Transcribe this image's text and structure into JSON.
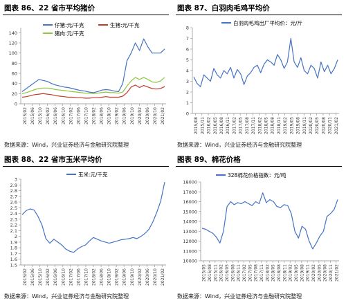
{
  "panels": [
    {
      "title": "图表 86、22 省市平均猪价",
      "source": "数据来源：Wind，兴业证券经济与金融研究院整理"
    },
    {
      "title": "图表 87、白羽肉毛鸡平均价",
      "source": "数据来源：Wind，兴业证券经济与金融研究院整理"
    },
    {
      "title": "图表 88、22 省市玉米平均价",
      "source": "数据来源：Wind，兴业证券经济与金融研究院整理"
    },
    {
      "title": "图表 89、棉花价格",
      "source": "数据来源：Wind，兴业证券经济与金融研究院整理"
    }
  ],
  "chart_data": [
    {
      "type": "line",
      "ylim": [
        0,
        150
      ],
      "yticks": [
        "0",
        "20",
        "40",
        "60",
        "80",
        "100",
        "120",
        "140"
      ],
      "xticks": [
        "2015/02",
        "2015/06",
        "2015/10",
        "2016/02",
        "2016/06",
        "2016/10",
        "2017/02",
        "2017/06",
        "2017/10",
        "2018/02",
        "2018/06",
        "2018/10",
        "2019/02",
        "2019/06",
        "2019/10",
        "2020/02",
        "2020/06",
        "2020/10",
        "2021/02"
      ],
      "legend": "top-center",
      "series": [
        {
          "name": "仔猪:元/千克",
          "color": "#4472C4",
          "values": [
            24,
            30,
            36,
            42,
            48,
            46,
            44,
            40,
            37,
            35,
            33,
            32,
            30,
            28,
            26,
            25,
            23,
            22,
            24,
            27,
            28,
            27,
            25,
            24,
            40,
            85,
            100,
            120,
            105,
            128,
            112,
            100,
            100,
            100,
            108
          ]
        },
        {
          "name": "生猪:元/千克",
          "color": "#C0392B",
          "values": [
            13,
            14,
            16,
            18,
            19,
            20,
            19,
            18,
            16,
            15,
            14,
            13,
            13,
            12,
            12,
            11,
            11,
            12,
            12,
            13,
            14,
            13,
            13,
            13,
            15,
            22,
            33,
            37,
            32,
            36,
            33,
            30,
            29,
            30,
            34
          ]
        },
        {
          "name": "猪肉:元/千克",
          "color": "#8DC63F",
          "values": [
            20,
            22,
            25,
            28,
            30,
            31,
            31,
            30,
            28,
            27,
            26,
            25,
            24,
            23,
            22,
            21,
            21,
            20,
            21,
            22,
            23,
            22,
            22,
            21,
            23,
            35,
            45,
            52,
            48,
            52,
            48,
            43,
            42,
            45,
            52
          ]
        }
      ]
    },
    {
      "type": "line",
      "ylim": [
        0,
        8
      ],
      "yticks": [
        "0",
        "1",
        "2",
        "3",
        "4",
        "5",
        "6",
        "7",
        "8"
      ],
      "xticks": [
        "2015/08",
        "2015/11",
        "2016/02",
        "2016/05",
        "2016/08",
        "2016/11",
        "2017/02",
        "2017/05",
        "2017/08",
        "2017/11",
        "2018/02",
        "2018/05",
        "2018/08",
        "2018/11",
        "2019/02",
        "2019/05",
        "2019/08",
        "2019/11",
        "2020/02",
        "2020/05",
        "2020/08",
        "2020/11",
        "2021/02"
      ],
      "legend": "top-center",
      "series": [
        {
          "name": "白羽肉毛鸡出厂平均价：元/斤",
          "color": "#4472C4",
          "values": [
            3.4,
            2.8,
            2.5,
            3.6,
            3.3,
            3.0,
            4.2,
            3.6,
            3.3,
            4.0,
            3.7,
            4.3,
            3.3,
            4.1,
            3.7,
            2.7,
            3.5,
            3.8,
            4.3,
            4.5,
            3.8,
            4.6,
            5.0,
            4.8,
            4.5,
            5.5,
            5.0,
            4.2,
            4.8,
            7.0,
            4.8,
            4.3,
            5.2,
            4.0,
            3.7,
            4.5,
            4.2,
            3.3,
            4.8,
            3.9,
            4.5,
            3.7,
            4.2,
            5.0
          ]
        }
      ]
    },
    {
      "type": "line",
      "ylim": [
        1.5,
        3.0
      ],
      "yticks": [
        "1.5",
        "1.6",
        "1.7",
        "1.8",
        "1.9",
        "2",
        "2.1",
        "2.2",
        "2.3",
        "2.4",
        "2.5",
        "2.6",
        "2.7",
        "2.8",
        "2.9",
        "3"
      ],
      "xticks": [
        "2015/02",
        "2015/06",
        "2015/10",
        "2016/02",
        "2016/06",
        "2016/10",
        "2017/02",
        "2017/06",
        "2017/10",
        "2018/02",
        "2018/06",
        "2018/10",
        "2019/02",
        "2019/06",
        "2019/10",
        "2020/02",
        "2020/06",
        "2020/10",
        "2021/02"
      ],
      "legend": "top-center",
      "series": [
        {
          "name": "玉米:元/千克",
          "color": "#4472C4",
          "values": [
            2.38,
            2.45,
            2.48,
            2.46,
            2.35,
            2.2,
            1.96,
            1.88,
            1.95,
            1.9,
            1.85,
            1.78,
            1.74,
            1.72,
            1.78,
            1.82,
            1.85,
            1.92,
            1.98,
            1.95,
            1.92,
            1.9,
            1.88,
            1.9,
            1.92,
            1.94,
            1.95,
            1.96,
            1.98,
            1.96,
            2.0,
            2.05,
            2.12,
            2.25,
            2.42,
            2.62,
            2.95
          ]
        }
      ]
    },
    {
      "type": "line",
      "ylim": [
        10000,
        18000
      ],
      "yticks": [
        "10000",
        "11000",
        "12000",
        "13000",
        "14000",
        "15000",
        "16000",
        "17000",
        "18000"
      ],
      "xticks": [
        "2015/05",
        "2015/08",
        "2015/11",
        "2016/02",
        "2016/05",
        "2016/08",
        "2016/11",
        "2017/02",
        "2017/05",
        "2017/08",
        "2017/11",
        "2018/02",
        "2018/05",
        "2018/08",
        "2018/11",
        "2019/02",
        "2019/05",
        "2019/08",
        "2019/11",
        "2020/02",
        "2020/05",
        "2020/08",
        "2020/11",
        "2021/02"
      ],
      "legend": "top-center",
      "series": [
        {
          "name": "328棉花价格指数：元/吨",
          "color": "#4472C4",
          "values": [
            13300,
            13200,
            13000,
            12800,
            12400,
            11800,
            13000,
            15500,
            16000,
            15700,
            15900,
            15800,
            16000,
            15800,
            15600,
            16000,
            15800,
            16900,
            15900,
            16200,
            16000,
            15500,
            15400,
            15700,
            15600,
            14800,
            13000,
            12300,
            13500,
            13200,
            12000,
            11200,
            11800,
            12500,
            13000,
            14500,
            14800,
            15200,
            16200
          ]
        }
      ]
    }
  ]
}
